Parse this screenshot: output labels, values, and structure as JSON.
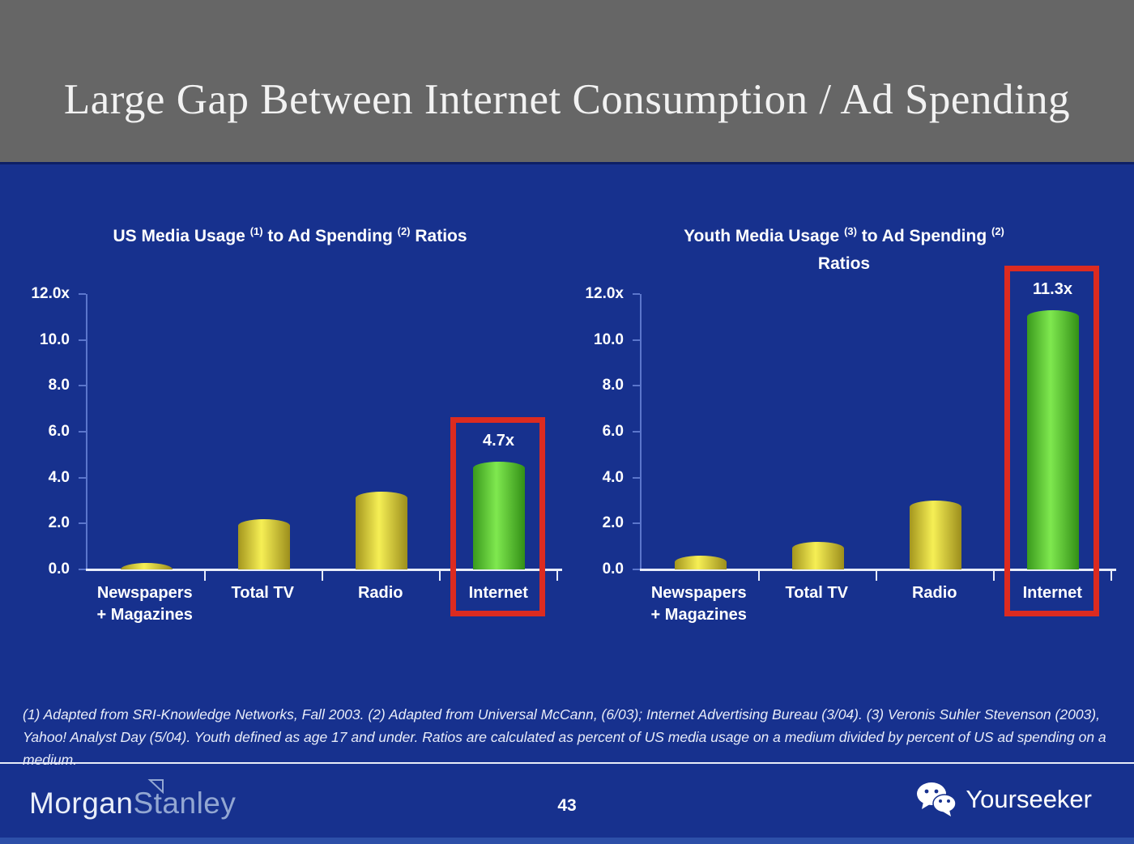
{
  "slide": {
    "title": "Large Gap Between Internet Consumption / Ad Spending",
    "page_number": "43",
    "footnote": "(1) Adapted from SRI-Knowledge Networks, Fall 2003.  (2) Adapted from Universal McCann, (6/03); Internet Advertising Bureau (3/04). (3) Veronis Suhler Stevenson (2003), Yahoo! Analyst Day (5/04).  Youth defined as age 17 and under.  Ratios are calculated as percent of US media usage on a medium divided by percent of US ad spending on a medium.",
    "brand": {
      "part1": "Morgan",
      "part2": "Stanley",
      "flag_icon": "logo-flag-icon"
    },
    "credit": {
      "label": "Yourseeker",
      "icon": "wechat-icon"
    }
  },
  "colors": {
    "header-gray": "#666666",
    "slide-blue": "#17318e",
    "bar-yellow": "#f6ef55",
    "bar-yellow-edge": "#a4961e",
    "bar-green": "#7fe84f",
    "bar-green-edge": "#3a9a1d",
    "highlight-red": "#dc2b20",
    "axis-light": "#5b76cc",
    "axis-white": "#e8edfa",
    "text-white": "#ffffff",
    "bottom-strip-blue": "#2d4fa8"
  },
  "chart_data": [
    {
      "type": "bar",
      "title": "US Media Usage (1) to Ad Spending (2) Ratios",
      "title_lines": [
        [
          {
            "text": "US Media Usage ",
            "sup": false
          },
          {
            "text": "(1)",
            "sup": true
          },
          {
            "text": " to Ad Spending ",
            "sup": false
          },
          {
            "text": "(2)",
            "sup": true
          },
          {
            "text": " Ratios",
            "sup": false
          }
        ]
      ],
      "categories": [
        "Newspapers + Magazines",
        "Total TV",
        "Radio",
        "Internet"
      ],
      "category_lines": [
        [
          "Newspapers",
          "+ Magazines"
        ],
        [
          "Total TV"
        ],
        [
          "Radio"
        ],
        [
          "Internet"
        ]
      ],
      "values": [
        0.3,
        2.2,
        3.4,
        4.7
      ],
      "bar_labels": [
        "",
        "",
        "",
        "4.7x"
      ],
      "bar_colors": [
        "yellow",
        "yellow",
        "yellow",
        "green"
      ],
      "highlight_index": 3,
      "xlabel": "",
      "ylabel": "",
      "ylim": [
        0,
        12
      ],
      "ytick_labels": [
        "12.0x",
        "10.0",
        "8.0",
        "6.0",
        "4.0",
        "2.0",
        "0.0"
      ],
      "grid": false,
      "legend": "none"
    },
    {
      "type": "bar",
      "title": "Youth Media Usage (3) to Ad Spending (2) Ratios",
      "title_lines": [
        [
          {
            "text": "Youth Media Usage ",
            "sup": false
          },
          {
            "text": "(3)",
            "sup": true
          },
          {
            "text": " to Ad Spending ",
            "sup": false
          },
          {
            "text": "(2)",
            "sup": true
          }
        ],
        [
          {
            "text": "Ratios",
            "sup": false
          }
        ]
      ],
      "categories": [
        "Newspapers + Magazines",
        "Total TV",
        "Radio",
        "Internet"
      ],
      "category_lines": [
        [
          "Newspapers",
          "+ Magazines"
        ],
        [
          "Total TV"
        ],
        [
          "Radio"
        ],
        [
          "Internet"
        ]
      ],
      "values": [
        0.6,
        1.2,
        3.0,
        11.3
      ],
      "bar_labels": [
        "",
        "",
        "",
        "11.3x"
      ],
      "bar_colors": [
        "yellow",
        "yellow",
        "yellow",
        "green"
      ],
      "highlight_index": 3,
      "xlabel": "",
      "ylabel": "",
      "ylim": [
        0,
        12
      ],
      "ytick_labels": [
        "12.0x",
        "10.0",
        "8.0",
        "6.0",
        "4.0",
        "2.0",
        "0.0"
      ],
      "grid": false,
      "legend": "none"
    }
  ]
}
